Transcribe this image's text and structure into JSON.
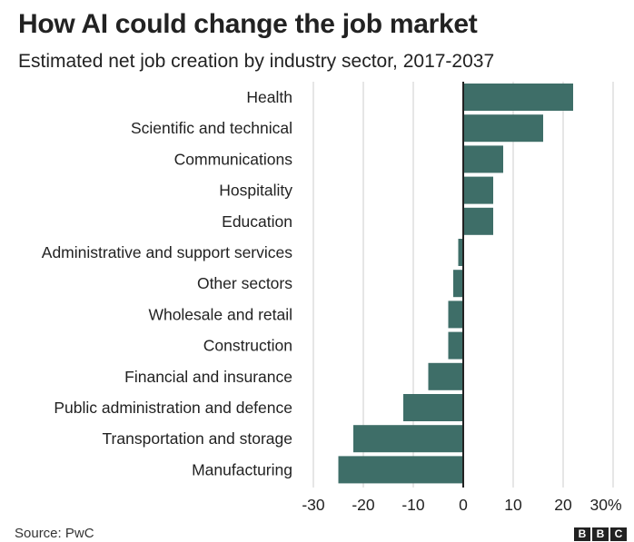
{
  "chart_data": {
    "type": "bar",
    "orientation": "horizontal",
    "title": "How AI could change the job market",
    "subtitle": "Estimated net job creation by industry sector, 2017-2037",
    "categories": [
      "Health",
      "Scientific and technical",
      "Communications",
      "Hospitality",
      "Education",
      "Administrative and support services",
      "Other sectors",
      "Wholesale and retail",
      "Construction",
      "Financial and insurance",
      "Public administration and defence",
      "Transportation and storage",
      "Manufacturing"
    ],
    "values": [
      22,
      16,
      8,
      6,
      6,
      -1,
      -2,
      -3,
      -3,
      -7,
      -12,
      -22,
      -25
    ],
    "xlim": [
      -30,
      30
    ],
    "x_ticks": [
      -30,
      -20,
      -10,
      0,
      10,
      20,
      30
    ],
    "x_tick_labels": [
      "-30",
      "-20",
      "-10",
      "0",
      "10",
      "20",
      "30%"
    ],
    "xlabel": "",
    "ylabel": "",
    "grid": true,
    "bar_color": "#3e6e68"
  },
  "footer": {
    "source": "Source: PwC",
    "logo_letters": [
      "B",
      "B",
      "C"
    ]
  }
}
